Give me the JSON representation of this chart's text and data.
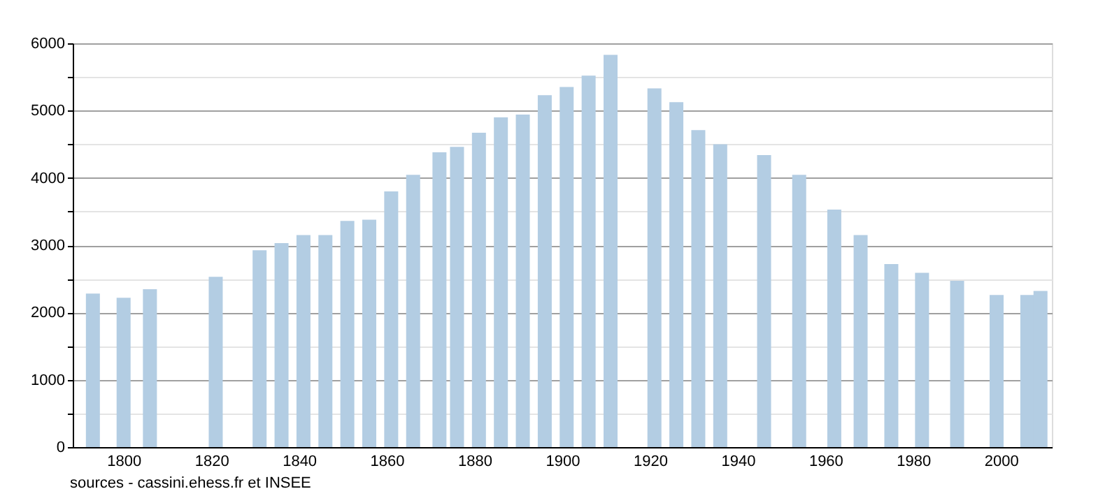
{
  "chart_data": {
    "type": "bar",
    "x": [
      1793,
      1800,
      1806,
      1821,
      1831,
      1836,
      1841,
      1846,
      1851,
      1856,
      1861,
      1866,
      1872,
      1876,
      1881,
      1886,
      1891,
      1896,
      1901,
      1906,
      1911,
      1921,
      1926,
      1931,
      1936,
      1946,
      1954,
      1962,
      1968,
      1975,
      1982,
      1990,
      1999,
      2006,
      2009
    ],
    "values": [
      2280,
      2220,
      2345,
      2530,
      2925,
      3030,
      3150,
      3150,
      3360,
      3380,
      3800,
      4045,
      4380,
      4460,
      4670,
      4900,
      4940,
      5230,
      5350,
      5520,
      5830,
      5330,
      5125,
      4710,
      4500,
      4340,
      4045,
      3530,
      3150,
      2720,
      2590,
      2470,
      2260,
      2260,
      2320
    ],
    "color": "#b3cde3",
    "xlim": [
      1790,
      2010
    ],
    "xticks": [
      1800,
      1820,
      1840,
      1860,
      1880,
      1900,
      1920,
      1940,
      1960,
      1980,
      2000
    ],
    "ylim": [
      0,
      6000
    ],
    "yticks": [
      0,
      {
        "value": 500,
        "label": null
      },
      1000,
      {
        "value": 1500,
        "label": null
      },
      2000,
      {
        "value": 2500,
        "label": null
      },
      3000,
      {
        "value": 3500,
        "label": null
      },
      4000,
      {
        "value": 4500,
        "label": null
      },
      5000,
      {
        "value": 5500,
        "label": null
      },
      6000
    ],
    "grid": "y",
    "annotations": [
      "sources - cassini.ehess.fr et INSEE"
    ]
  }
}
